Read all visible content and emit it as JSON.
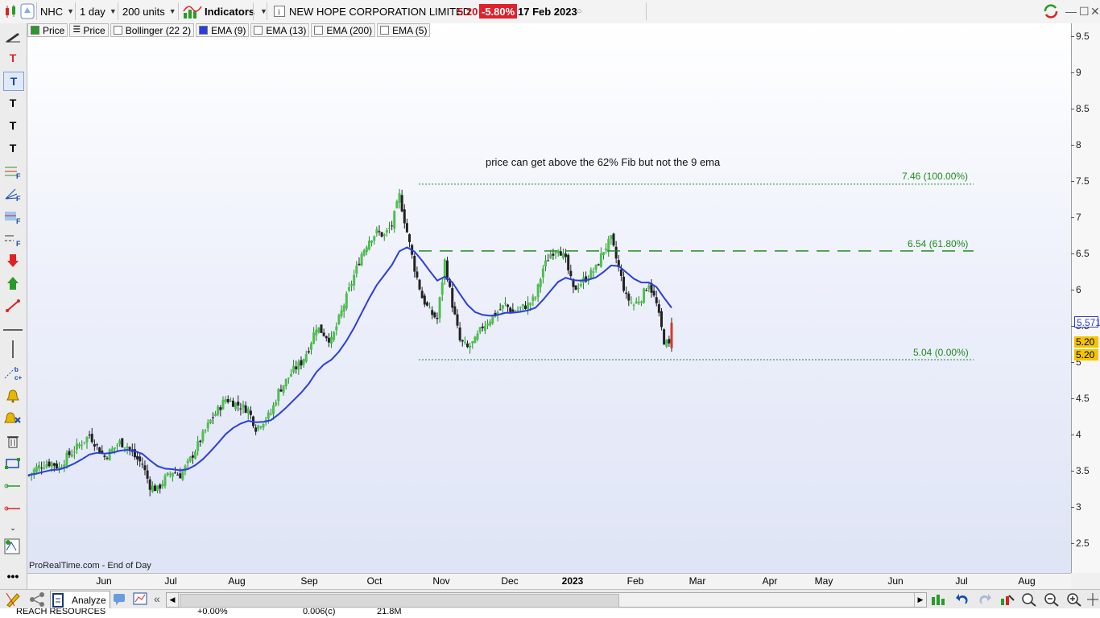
{
  "toolbar": {
    "symbol": "NHC",
    "timeframe": "1 day",
    "units": "200 units",
    "indicators_label": "Indicators",
    "instrument_name": "NEW HOPE CORPORATION LIMITED",
    "last_price": "5.20",
    "change_pct": "-5.80%",
    "date": "17 Feb 2023"
  },
  "legend": [
    {
      "label": "Price",
      "color": "#2a9a2a"
    },
    {
      "label": "Price",
      "color": "#333333"
    },
    {
      "label": "Bollinger (22 2)",
      "color": "#ffffff"
    },
    {
      "label": "EMA (9)",
      "color": "#2b3de0"
    },
    {
      "label": "EMA (13)",
      "color": "#ffffff"
    },
    {
      "label": "EMA (200)",
      "color": "#ffffff"
    },
    {
      "label": "EMA (5)",
      "color": "#ffffff"
    }
  ],
  "chart_data": {
    "type": "candlestick",
    "title": "",
    "y_ticks": [
      "9.5",
      "9",
      "8.5",
      "8",
      "7.5",
      "7",
      "6.5",
      "6",
      "5.5",
      "5",
      "4.5",
      "4",
      "3.5",
      "3",
      "2.5"
    ],
    "ylim": [
      2.1,
      9.7
    ],
    "x_labels": [
      "Jun",
      "Jul",
      "Aug",
      "Sep",
      "Oct",
      "Nov",
      "Dec",
      "2023",
      "Feb",
      "Mar",
      "Apr",
      "May",
      "Jun",
      "Jul",
      "Aug"
    ],
    "ema9_color": "#2b3de0",
    "fib_color": "#1e8c1e",
    "fib_levels": [
      {
        "value": 7.46,
        "label": "7.46 (100.00%)"
      },
      {
        "value": 6.54,
        "label": "6.54 (61.80%)"
      },
      {
        "value": 5.04,
        "label": "5.04 (0.00%)"
      }
    ],
    "annotation": "price can get above the 62%  Fib but not the 9 ema",
    "last_close": 5.2,
    "ema_value_label": "5.571",
    "price_labels": [
      "5.20",
      "5.20"
    ],
    "approx_close_path": [
      3.45,
      3.55,
      3.6,
      3.62,
      3.55,
      3.7,
      3.8,
      3.9,
      4.0,
      3.85,
      3.7,
      3.8,
      3.9,
      3.85,
      3.7,
      3.6,
      3.3,
      3.25,
      3.4,
      3.5,
      3.45,
      3.6,
      3.8,
      4.0,
      4.2,
      4.35,
      4.5,
      4.45,
      4.4,
      4.35,
      4.1,
      4.2,
      4.3,
      4.6,
      4.75,
      4.9,
      5.0,
      5.2,
      5.5,
      5.4,
      5.3,
      5.6,
      5.9,
      6.2,
      6.5,
      6.7,
      6.8,
      6.75,
      6.9,
      7.3,
      6.8,
      6.3,
      5.9,
      5.7,
      5.6,
      6.4,
      5.8,
      5.3,
      5.2,
      5.3,
      5.5,
      5.6,
      5.7,
      5.8,
      5.7,
      5.75,
      5.8,
      5.9,
      6.3,
      6.5,
      6.6,
      6.4,
      6.0,
      6.1,
      6.2,
      6.3,
      6.55,
      6.7,
      6.3,
      5.9,
      5.8,
      5.9,
      6.1,
      5.8,
      5.3,
      5.2
    ]
  },
  "footer": {
    "source": "ProRealTime.com - End of Day",
    "analyze_label": "Analyze"
  },
  "watchlist_row": {
    "name": "REACH RESOURCES",
    "change": "+0.00%",
    "volume_c": "0.006(c)",
    "volume": "21.8M"
  }
}
